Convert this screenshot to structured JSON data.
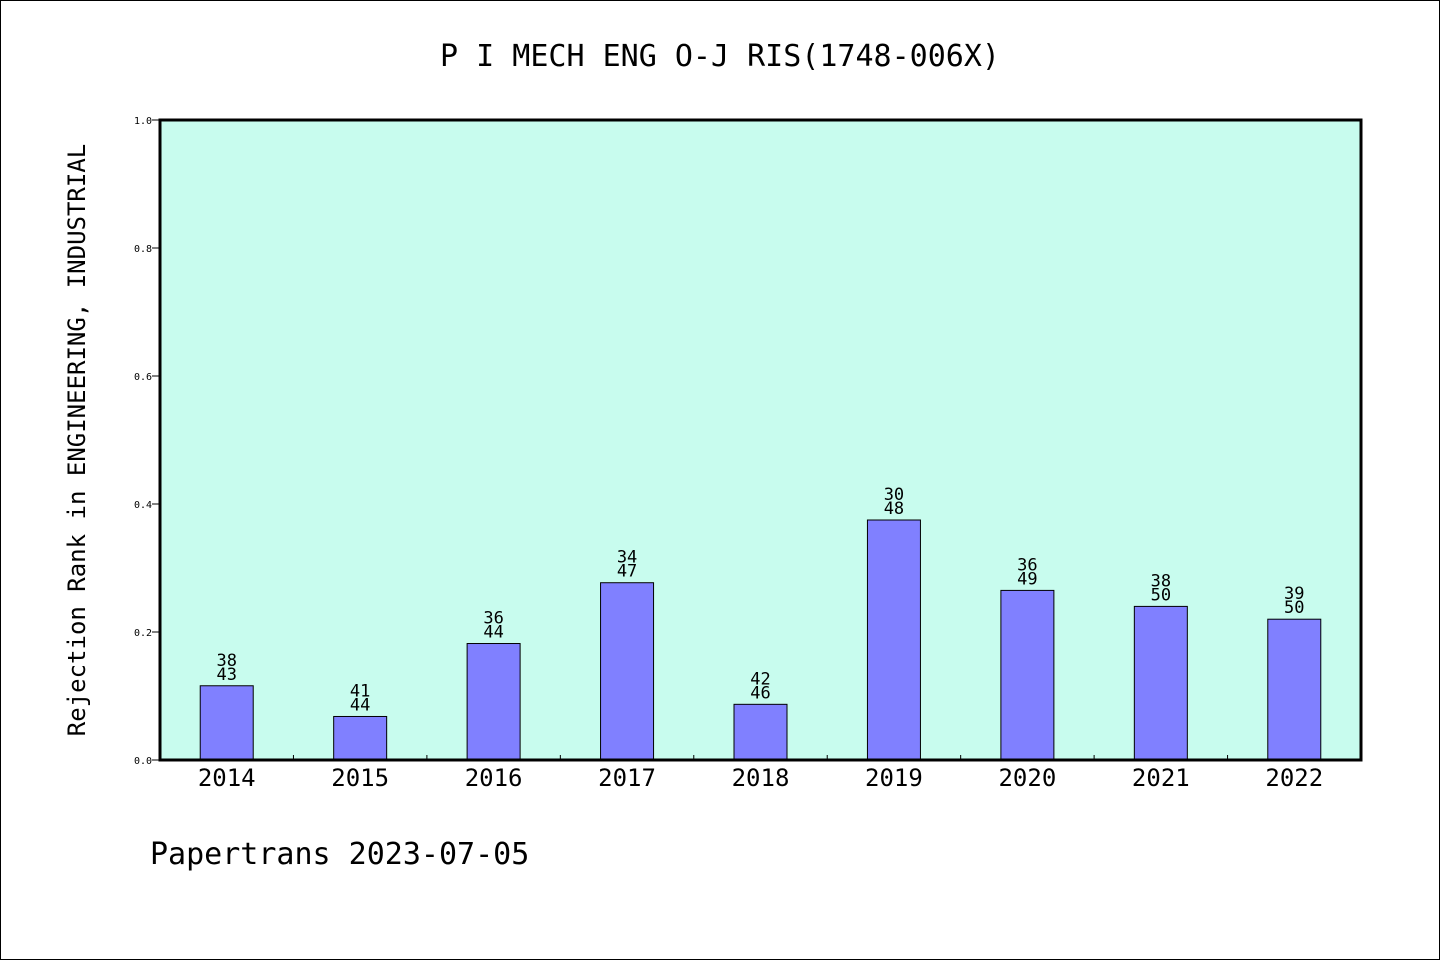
{
  "chart_data": {
    "type": "bar",
    "title": "P I MECH ENG O-J RIS(1748-006X)",
    "ylabel": "Rejection Rank in ENGINEERING, INDUSTRIAL",
    "xlabel": "",
    "ylim": [
      0,
      1.0
    ],
    "yticks": [
      "0.0",
      "0.2",
      "0.4",
      "0.6",
      "0.8",
      "1.0"
    ],
    "grid": false,
    "categories": [
      "2014",
      "2015",
      "2016",
      "2017",
      "2018",
      "2019",
      "2020",
      "2021",
      "2022"
    ],
    "values": [
      0.116,
      0.068,
      0.182,
      0.277,
      0.087,
      0.375,
      0.265,
      0.24,
      0.22
    ],
    "labels": [
      [
        "38",
        "43"
      ],
      [
        "41",
        "44"
      ],
      [
        "36",
        "44"
      ],
      [
        "34",
        "47"
      ],
      [
        "42",
        "46"
      ],
      [
        "30",
        "48"
      ],
      [
        "36",
        "49"
      ],
      [
        "38",
        "50"
      ],
      [
        "39",
        "50"
      ]
    ],
    "colors": {
      "bar": "#8080ff",
      "plot_bg": "#c8fcee"
    }
  },
  "footer": "Papertrans 2023-07-05"
}
